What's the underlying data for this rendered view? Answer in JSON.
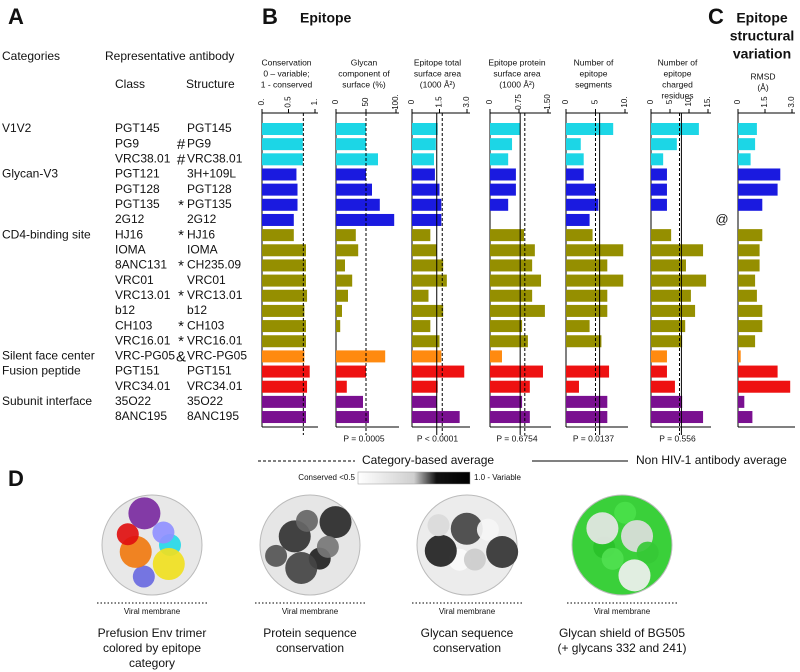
{
  "panel_labels": {
    "a": "A",
    "b": "B",
    "c": "C",
    "d": "D"
  },
  "titles": {
    "epitope": "Epitope",
    "variation": [
      "Epitope",
      "structural",
      "variation"
    ]
  },
  "table": {
    "categories_header": "Categories",
    "antibody_header": "Representative antibody",
    "class_header": "Class",
    "structure_header": "Structure",
    "groups": [
      {
        "name": "V1V2",
        "color": "#1cd6e6",
        "rows": [
          {
            "class": "PGT145",
            "structure": "PGT145"
          },
          {
            "class": "PG9",
            "structure": "PG9",
            "marker": "#"
          },
          {
            "class": "VRC38.01",
            "structure": "VRC38.01",
            "marker": "#"
          }
        ]
      },
      {
        "name": "Glycan-V3",
        "color": "#1a1ae0",
        "rows": [
          {
            "class": "PGT121",
            "structure": "3H+109L"
          },
          {
            "class": "PGT128",
            "structure": "PGT128"
          },
          {
            "class": "PGT135",
            "structure": "PGT135",
            "marker": "*"
          },
          {
            "class": "2G12",
            "structure": "2G12",
            "note": "@"
          }
        ]
      },
      {
        "name": "CD4-binding site",
        "color": "#958f00",
        "rows": [
          {
            "class": "HJ16",
            "structure": "HJ16",
            "marker": "*"
          },
          {
            "class": "IOMA",
            "structure": "IOMA"
          },
          {
            "class": "8ANC131",
            "structure": "CH235.09",
            "marker": "*"
          },
          {
            "class": "VRC01",
            "structure": "VRC01"
          },
          {
            "class": "VRC13.01",
            "structure": "VRC13.01",
            "marker": "*"
          },
          {
            "class": "b12",
            "structure": "b12"
          },
          {
            "class": "CH103",
            "structure": "CH103",
            "marker": "*"
          },
          {
            "class": "VRC16.01",
            "structure": "VRC16.01",
            "marker": "*"
          }
        ]
      },
      {
        "name": "Silent face center",
        "color": "#ff8a10",
        "rows": [
          {
            "class": "VRC-PG05",
            "structure": "VRC-PG05",
            "marker": "&"
          }
        ]
      },
      {
        "name": "Fusion peptide",
        "color": "#ee1111",
        "rows": [
          {
            "class": "PGT151",
            "structure": "PGT151"
          },
          {
            "class": "VRC34.01",
            "structure": "VRC34.01"
          }
        ]
      },
      {
        "name": "Subunit interface",
        "color": "#7a1090",
        "rows": [
          {
            "class": "35O22",
            "structure": "35O22"
          },
          {
            "class": "8ANC195",
            "structure": "8ANC195"
          }
        ]
      }
    ]
  },
  "chart_data": [
    {
      "type": "bar",
      "title": [
        "Conservation",
        "0 – variable;",
        "1 - conserved"
      ],
      "values": [
        0.77,
        0.77,
        0.77,
        0.65,
        0.67,
        0.67,
        0.6,
        0.6,
        0.83,
        0.83,
        0.83,
        0.85,
        0.8,
        0.83,
        0.83,
        0.8,
        0.9,
        0.85,
        0.83,
        0.83
      ],
      "xlim": [
        0,
        1
      ],
      "xticks": [
        {
          "value": 0,
          "label": "0."
        },
        0.5,
        {
          "value": 1,
          "label": "1."
        }
      ],
      "category_average": 0.78
    },
    {
      "type": "bar",
      "title": [
        "Glycan",
        "component of",
        "surface (%)"
      ],
      "values": [
        50,
        50,
        70,
        50,
        60,
        73,
        97,
        33,
        37,
        15,
        27,
        20,
        10,
        7,
        0,
        82,
        50,
        18,
        45,
        55
      ],
      "xlim": [
        0,
        100
      ],
      "xticks": [
        0,
        50,
        {
          "value": 100,
          "label": "100."
        }
      ],
      "category_average": 50,
      "p_label": "P =  0.0005"
    },
    {
      "type": "bar",
      "title": [
        "Epitope total",
        "surface area",
        "(1000 Å²)"
      ],
      "values": [
        1.4,
        1.3,
        1.2,
        1.25,
        1.5,
        1.6,
        1.6,
        1.0,
        1.35,
        1.7,
        1.9,
        0.9,
        1.7,
        1.0,
        1.5,
        1.6,
        2.85,
        1.4,
        1.35,
        2.6
      ],
      "xlim": [
        0,
        3
      ],
      "xticks": [
        0,
        1.5,
        {
          "value": 3,
          "label": "3.0"
        }
      ],
      "category_average": 1.65,
      "non_hiv_average": 1.35,
      "p_label": "P < 0.0001"
    },
    {
      "type": "bar",
      "title": [
        "Epitope protein",
        "surface area",
        "(1000 Å²)"
      ],
      "values": [
        0.78,
        0.57,
        0.47,
        0.67,
        0.67,
        0.47,
        0,
        0.88,
        1.16,
        1.09,
        1.32,
        1.09,
        1.42,
        0.83,
        0.98,
        0.31,
        1.37,
        1.03,
        0.83,
        1.03
      ],
      "xlim": [
        0,
        1.5
      ],
      "xticks": [
        0,
        0.75,
        {
          "value": 1.5,
          "label": "1.50"
        }
      ],
      "category_average": 0.9,
      "non_hiv_average": 0.78,
      "p_label": "P =  0.6754"
    },
    {
      "type": "bar",
      "title": [
        "Number of",
        "epitope",
        "segments"
      ],
      "values": [
        8,
        2.5,
        3,
        3,
        5,
        5.5,
        4,
        4.5,
        9.7,
        7,
        9.7,
        7,
        7,
        4,
        6,
        0,
        7.3,
        2.2,
        7,
        7
      ],
      "xlim": [
        0,
        10
      ],
      "xticks": [
        0,
        5,
        {
          "value": 10,
          "label": "10."
        }
      ],
      "category_average": 5,
      "non_hiv_average": 5.7,
      "p_label": "P = 0.0137"
    },
    {
      "type": "bar",
      "title": [
        "Number of",
        "epitope",
        "charged",
        "residues"
      ],
      "values": [
        12.6,
        6.8,
        3.2,
        4.2,
        4.2,
        4.2,
        0,
        5.3,
        13.7,
        9.2,
        14.5,
        10.5,
        11.6,
        9,
        8.2,
        4.2,
        4.2,
        6.3,
        8.2,
        13.7
      ],
      "xlim": [
        0,
        15
      ],
      "xticks": [
        0,
        5,
        10,
        {
          "value": 15,
          "label": "15."
        }
      ],
      "category_average": 7.5,
      "non_hiv_average": 8,
      "p_label": "P = 0.556"
    },
    {
      "type": "bar",
      "title": [
        "RMSD",
        "(Å)"
      ],
      "values": [
        1.05,
        0.95,
        0.7,
        2.35,
        2.2,
        1.35,
        0,
        1.35,
        1.2,
        1.2,
        0.95,
        1.05,
        1.35,
        1.35,
        0.95,
        0.15,
        2.2,
        2.9,
        0.35,
        0.8
      ],
      "xlim": [
        0,
        3
      ],
      "xticks": [
        0,
        1.5,
        {
          "value": 3,
          "label": "3.0"
        }
      ]
    }
  ],
  "legend": {
    "category_average": "Category-based average",
    "non_hiv_average": "Non HIV-1 antibody average"
  },
  "panel_d": {
    "scale": {
      "low": "Conserved <0.5",
      "high": "1.0 - Variable"
    },
    "images": [
      {
        "membrane": "Viral membrane",
        "caption": [
          "Prefusion Env trimer",
          "colored by epitope",
          "category"
        ]
      },
      {
        "membrane": "Viral membrane",
        "caption": [
          "Protein sequence",
          "conservation"
        ]
      },
      {
        "membrane": "Viral membrane",
        "caption": [
          "Glycan sequence",
          "conservation"
        ]
      },
      {
        "membrane": "Viral membrane",
        "caption": [
          "Glycan shield of BG505",
          "(+ glycans 332 and 241)"
        ]
      }
    ]
  }
}
